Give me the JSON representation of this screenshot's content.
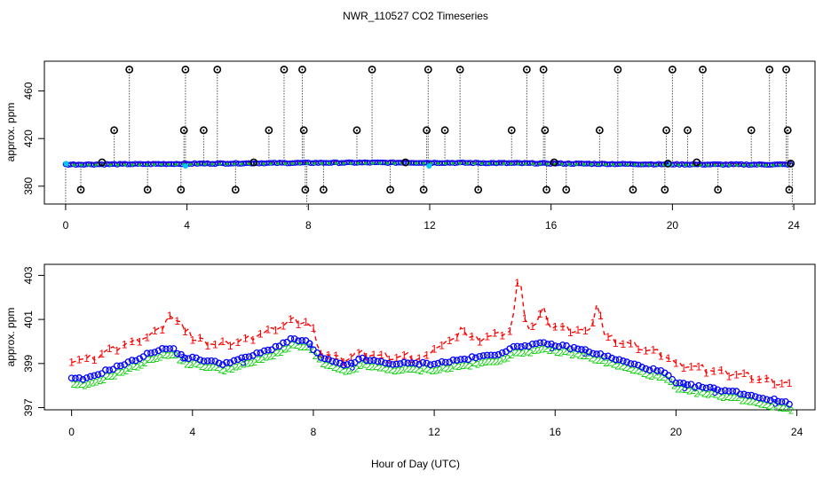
{
  "chart_data": [
    {
      "type": "scatter",
      "panel": "top",
      "title": "NWR_110527  CO2 Timeseries",
      "xlabel": "",
      "ylabel": "approx. ppm",
      "xlim": [
        -0.7,
        24.7
      ],
      "ylim": [
        365,
        485
      ],
      "xticks": [
        0,
        4,
        8,
        12,
        16,
        20,
        24
      ],
      "yticks": [
        380,
        420,
        460
      ],
      "series_colors": {
        "red": "#ff0000",
        "green": "#00cc00",
        "blue": "#0000ff",
        "cyan": "#00c8ff",
        "black": "#000000"
      },
      "series": [
        {
          "name": "baseline",
          "values_desc": "~399 ppm near-flat across 24 h"
        }
      ],
      "spike_values": [
        {
          "x": 0.5,
          "y": 377
        },
        {
          "x": 1.6,
          "y": 427
        },
        {
          "x": 2.1,
          "y": 478
        },
        {
          "x": 2.7,
          "y": 377
        },
        {
          "x": 3.8,
          "y": 377
        },
        {
          "x": 3.9,
          "y": 427
        },
        {
          "x": 3.95,
          "y": 478
        },
        {
          "x": 4.55,
          "y": 427
        },
        {
          "x": 5.0,
          "y": 478
        },
        {
          "x": 5.6,
          "y": 377
        },
        {
          "x": 6.7,
          "y": 427
        },
        {
          "x": 7.2,
          "y": 478
        },
        {
          "x": 7.8,
          "y": 478
        },
        {
          "x": 7.85,
          "y": 427
        },
        {
          "x": 7.9,
          "y": 377
        },
        {
          "x": 8.5,
          "y": 377
        },
        {
          "x": 9.6,
          "y": 427
        },
        {
          "x": 10.1,
          "y": 478
        },
        {
          "x": 10.7,
          "y": 377
        },
        {
          "x": 11.8,
          "y": 377
        },
        {
          "x": 11.9,
          "y": 427
        },
        {
          "x": 11.95,
          "y": 478
        },
        {
          "x": 12.5,
          "y": 427
        },
        {
          "x": 13.0,
          "y": 478
        },
        {
          "x": 13.6,
          "y": 377
        },
        {
          "x": 14.7,
          "y": 427
        },
        {
          "x": 15.2,
          "y": 478
        },
        {
          "x": 15.75,
          "y": 478
        },
        {
          "x": 15.8,
          "y": 427
        },
        {
          "x": 15.85,
          "y": 377
        },
        {
          "x": 16.5,
          "y": 377
        },
        {
          "x": 17.6,
          "y": 427
        },
        {
          "x": 18.2,
          "y": 478
        },
        {
          "x": 18.7,
          "y": 377
        },
        {
          "x": 19.75,
          "y": 377
        },
        {
          "x": 19.8,
          "y": 427
        },
        {
          "x": 19.85,
          "y": 399
        },
        {
          "x": 20.0,
          "y": 478
        },
        {
          "x": 20.5,
          "y": 427
        },
        {
          "x": 21.0,
          "y": 478
        },
        {
          "x": 21.5,
          "y": 377
        },
        {
          "x": 22.6,
          "y": 427
        },
        {
          "x": 23.2,
          "y": 478
        },
        {
          "x": 23.75,
          "y": 478
        },
        {
          "x": 23.8,
          "y": 427
        },
        {
          "x": 23.85,
          "y": 377
        },
        {
          "x": 23.9,
          "y": 399
        }
      ]
    },
    {
      "type": "scatter",
      "panel": "bottom",
      "title": "",
      "xlabel": "Hour of Day (UTC)",
      "ylabel": "approx. ppm",
      "xlim": [
        -0.9,
        24.6
      ],
      "ylim": [
        396.9,
        403.5
      ],
      "xticks": [
        0,
        4,
        8,
        12,
        16,
        20,
        24
      ],
      "yticks": [
        397,
        399,
        401,
        403
      ],
      "series": [
        {
          "name": "1",
          "color": "#ff0000",
          "symbol": "1",
          "desc": "red dashed series labeled 1, ~0.6–1.6 ppm above series 3"
        },
        {
          "name": "2",
          "color": "#00cc00",
          "symbol": "2",
          "desc": "green series labeled 2, ~0.25 ppm below series 3"
        },
        {
          "name": "3",
          "color": "#0000ff",
          "symbol": "3/o",
          "desc": "blue series labeled 3"
        }
      ],
      "series3_anchor_values": [
        {
          "x": 0.0,
          "y": 398.3
        },
        {
          "x": 0.5,
          "y": 398.3
        },
        {
          "x": 1.0,
          "y": 398.6
        },
        {
          "x": 2.0,
          "y": 399.1
        },
        {
          "x": 2.8,
          "y": 399.6
        },
        {
          "x": 3.3,
          "y": 399.7
        },
        {
          "x": 3.7,
          "y": 399.3
        },
        {
          "x": 4.2,
          "y": 399.2
        },
        {
          "x": 5.0,
          "y": 399.0
        },
        {
          "x": 5.6,
          "y": 399.2
        },
        {
          "x": 6.5,
          "y": 399.6
        },
        {
          "x": 7.3,
          "y": 400.1
        },
        {
          "x": 7.8,
          "y": 400.0
        },
        {
          "x": 8.2,
          "y": 399.3
        },
        {
          "x": 9.0,
          "y": 398.9
        },
        {
          "x": 9.6,
          "y": 399.2
        },
        {
          "x": 10.5,
          "y": 399.0
        },
        {
          "x": 11.5,
          "y": 399.0
        },
        {
          "x": 12.0,
          "y": 399.0
        },
        {
          "x": 13.0,
          "y": 399.2
        },
        {
          "x": 14.0,
          "y": 399.4
        },
        {
          "x": 14.8,
          "y": 399.8
        },
        {
          "x": 15.6,
          "y": 399.9
        },
        {
          "x": 16.2,
          "y": 399.8
        },
        {
          "x": 17.0,
          "y": 399.6
        },
        {
          "x": 18.0,
          "y": 399.2
        },
        {
          "x": 19.0,
          "y": 398.8
        },
        {
          "x": 19.6,
          "y": 398.6
        },
        {
          "x": 20.0,
          "y": 398.1
        },
        {
          "x": 21.0,
          "y": 397.9
        },
        {
          "x": 22.0,
          "y": 397.7
        },
        {
          "x": 23.0,
          "y": 397.4
        },
        {
          "x": 23.8,
          "y": 397.2
        }
      ],
      "series1_peaks": [
        {
          "x": 3.2,
          "y": 401.4
        },
        {
          "x": 7.4,
          "y": 400.9
        },
        {
          "x": 12.9,
          "y": 400.8
        },
        {
          "x": 14.8,
          "y": 403.1
        },
        {
          "x": 15.6,
          "y": 401.6
        },
        {
          "x": 17.4,
          "y": 401.9
        }
      ]
    }
  ],
  "labels": {
    "title": "NWR_110527  CO2 Timeseries",
    "xlabel": "Hour of Day (UTC)",
    "ylabel_top": "approx. ppm",
    "ylabel_bottom": "approx. ppm"
  }
}
